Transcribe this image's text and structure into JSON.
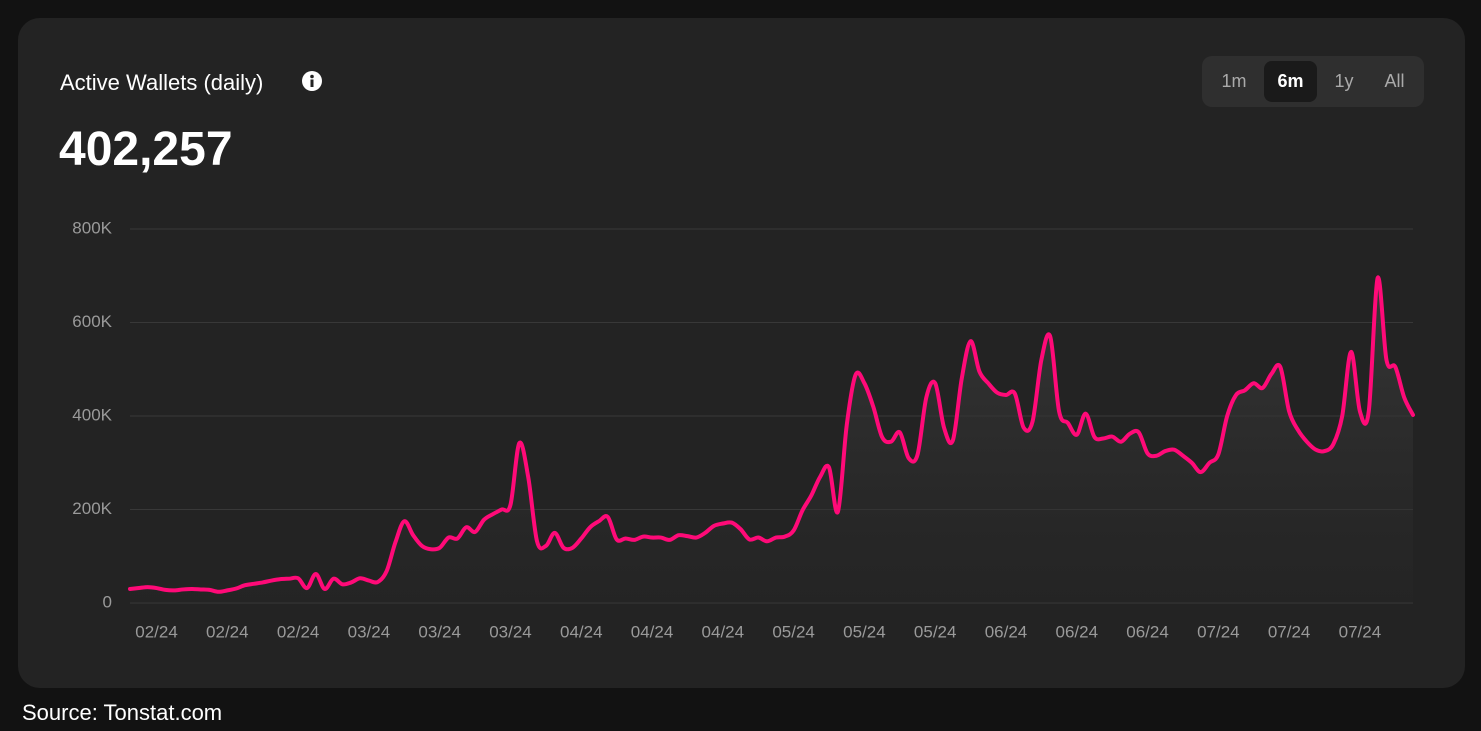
{
  "header": {
    "title": "Active Wallets (daily)",
    "current_value": "402,257"
  },
  "range_options": [
    "1m",
    "6m",
    "1y",
    "All"
  ],
  "selected_range": "6m",
  "source": "Source: Tonstat.com",
  "chart_data": {
    "type": "line",
    "categories": [
      null,
      null,
      null,
      "02/24",
      null,
      null,
      null,
      null,
      null,
      null,
      null,
      "02/24",
      null,
      null,
      null,
      null,
      null,
      null,
      null,
      "02/24",
      null,
      null,
      null,
      null,
      null,
      null,
      null,
      "03/24",
      null,
      null,
      null,
      null,
      null,
      null,
      null,
      "03/24",
      null,
      null,
      null,
      null,
      null,
      null,
      null,
      "03/24",
      null,
      null,
      null,
      null,
      null,
      null,
      null,
      "04/24",
      null,
      null,
      null,
      null,
      null,
      null,
      null,
      "04/24",
      null,
      null,
      null,
      null,
      null,
      null,
      null,
      "04/24",
      null,
      null,
      null,
      null,
      null,
      null,
      null,
      "05/24",
      null,
      null,
      null,
      null,
      null,
      null,
      null,
      "05/24",
      null,
      null,
      null,
      null,
      null,
      null,
      null,
      "05/24",
      null,
      null,
      null,
      null,
      null,
      null,
      null,
      "06/24",
      null,
      null,
      null,
      null,
      null,
      null,
      null,
      "06/24",
      null,
      null,
      null,
      null,
      null,
      null,
      null,
      "06/24",
      null,
      null,
      null,
      null,
      null,
      null,
      null,
      "07/24",
      null,
      null,
      null,
      null,
      null,
      null,
      null,
      "07/24",
      null,
      null,
      null,
      null,
      null,
      null,
      null,
      "07/24",
      null,
      null,
      null,
      null,
      null,
      null
    ],
    "series": [
      {
        "name": "Active Wallets",
        "color": "#ff0a78",
        "values": [
          30000,
          32000,
          34000,
          32000,
          28000,
          27000,
          29000,
          30000,
          29000,
          28000,
          24000,
          27000,
          31000,
          38000,
          41000,
          44000,
          48000,
          51000,
          52000,
          53000,
          32000,
          62000,
          30000,
          52000,
          40000,
          44000,
          53000,
          48000,
          45000,
          68000,
          130000,
          175000,
          145000,
          122000,
          115000,
          118000,
          140000,
          138000,
          162000,
          152000,
          178000,
          190000,
          200000,
          210000,
          342000,
          270000,
          132000,
          122000,
          150000,
          118000,
          118000,
          138000,
          162000,
          175000,
          184000,
          136000,
          138000,
          135000,
          142000,
          140000,
          140000,
          135000,
          145000,
          143000,
          140000,
          150000,
          165000,
          170000,
          172000,
          158000,
          136000,
          140000,
          132000,
          140000,
          142000,
          155000,
          198000,
          230000,
          270000,
          290000,
          195000,
          380000,
          488000,
          470000,
          420000,
          355000,
          345000,
          365000,
          310000,
          317000,
          440000,
          470000,
          375000,
          348000,
          480000,
          560000,
          495000,
          470000,
          450000,
          445000,
          448000,
          375000,
          388000,
          520000,
          570000,
          410000,
          385000,
          360000,
          405000,
          355000,
          352000,
          356000,
          345000,
          362000,
          365000,
          320000,
          315000,
          325000,
          328000,
          315000,
          300000,
          280000,
          300000,
          318000,
          400000,
          445000,
          455000,
          470000,
          460000,
          490000,
          505000,
          410000,
          370000,
          345000,
          328000,
          325000,
          340000,
          400000,
          537000,
          410000,
          410000,
          695000,
          520000,
          505000,
          440000,
          402257
        ]
      }
    ],
    "ylim": [
      0,
      800000
    ],
    "yticks": [
      0,
      {
        "value": 200000,
        "label": "200K"
      },
      {
        "value": 400000,
        "label": "400K"
      },
      {
        "value": 600000,
        "label": "600K"
      },
      {
        "value": 800000,
        "label": "800K"
      }
    ],
    "grid": true
  }
}
